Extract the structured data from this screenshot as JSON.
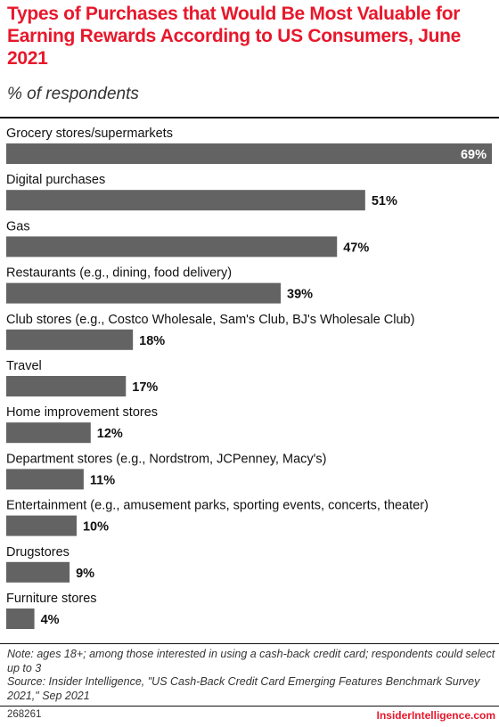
{
  "header": {
    "title": "Types of Purchases that Would Be Most Valuable for Earning Rewards According to US Consumers, June 2021",
    "subtitle": "% of respondents"
  },
  "chart_data": {
    "type": "bar",
    "orientation": "horizontal",
    "categories": [
      "Grocery stores/supermarkets",
      "Digital purchases",
      "Gas",
      "Restaurants (e.g., dining, food delivery)",
      "Club stores (e.g., Costco Wholesale, Sam's Club, BJ's Wholesale Club)",
      "Travel",
      "Home improvement stores",
      "Department stores (e.g., Nordstrom, JCPenney, Macy's)",
      "Entertainment (e.g., amusement parks, sporting events, concerts, theater)",
      "Drugstores",
      "Furniture stores"
    ],
    "values": [
      69,
      51,
      47,
      39,
      18,
      17,
      12,
      11,
      10,
      9,
      4
    ],
    "value_labels": [
      "69%",
      "51%",
      "47%",
      "39%",
      "18%",
      "17%",
      "12%",
      "11%",
      "10%",
      "9%",
      "4%"
    ],
    "unit": "%",
    "xlim": [
      0,
      69
    ],
    "grid": false,
    "legend": "none",
    "bar_color": "#636363"
  },
  "footer": {
    "note": "Note: ages 18+; among those interested in using a cash-back credit card; respondents could select up to 3",
    "source": "Source: Insider Intelligence, \"US Cash-Back Credit Card Emerging Features Benchmark Survey 2021,\" Sep 2021",
    "chart_id": "268261",
    "brand": "InsiderIntelligence.com"
  },
  "colors": {
    "title": "#e8172b",
    "brand": "#e8172b",
    "bar": "#636363"
  }
}
